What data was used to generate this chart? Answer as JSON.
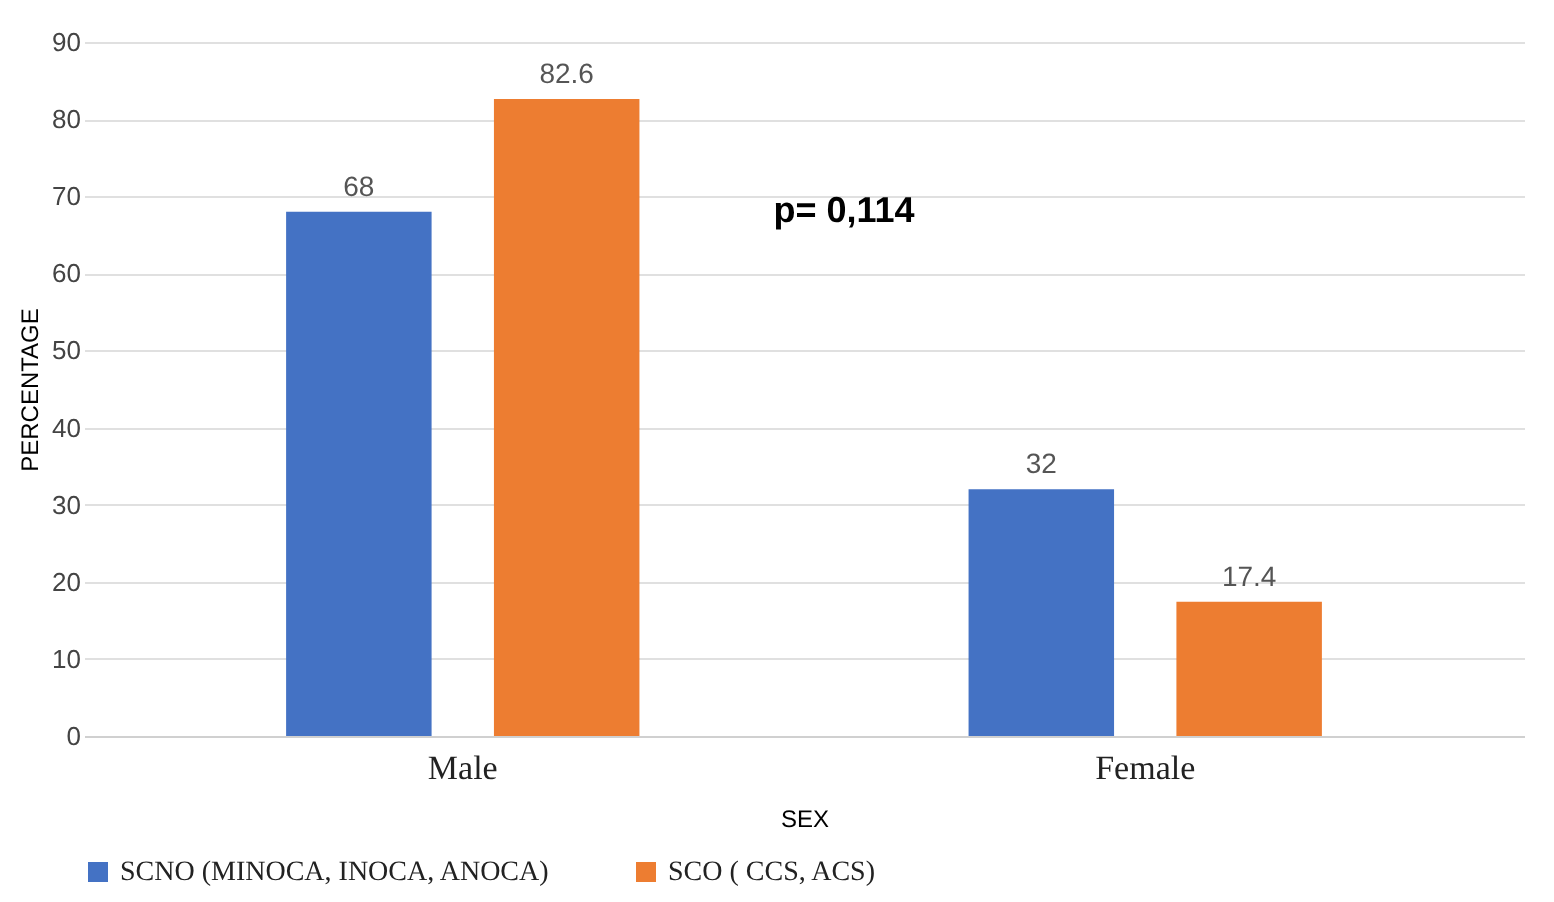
{
  "chart_data": {
    "type": "bar",
    "xlabel": "SEX",
    "ylabel": "PERCENTAGE",
    "categories": [
      "Male",
      "Female"
    ],
    "series": [
      {
        "name": "SCNO (MINOCA, INOCA, ANOCA)",
        "color": "#4472c4",
        "values": [
          68,
          32
        ]
      },
      {
        "name": "SCO ( CCS, ACS)",
        "color": "#ed7d31",
        "values": [
          82.6,
          17.4
        ]
      }
    ],
    "ylim": [
      0,
      90
    ],
    "yticks": [
      0,
      10,
      20,
      30,
      40,
      50,
      60,
      70,
      80,
      90
    ],
    "grid": "y",
    "legend": "bottom",
    "data_labels": true,
    "annotations": [
      "p= 0,114"
    ]
  }
}
